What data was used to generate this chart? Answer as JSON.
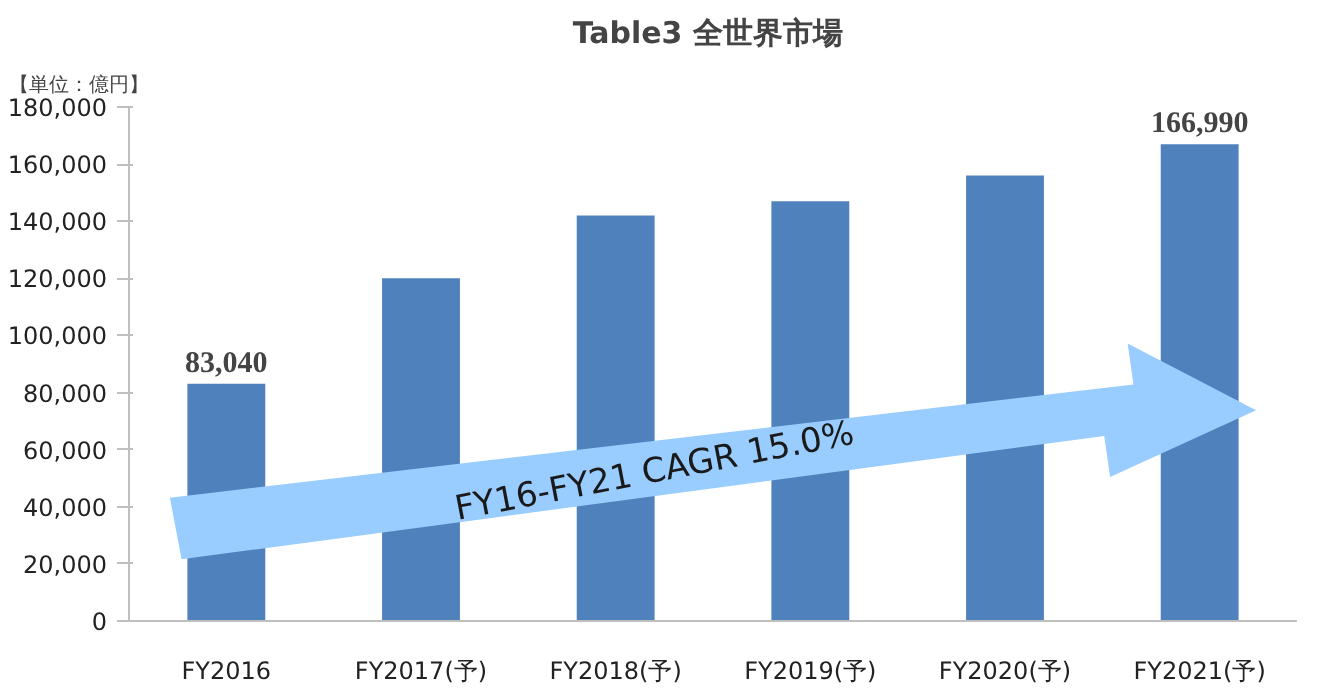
{
  "chart_data": {
    "type": "bar",
    "title": "Table3  全世界市場",
    "ylabel": "【単位：億円】",
    "categories": [
      "FY2016",
      "FY2017(予)",
      "FY2018(予)",
      "FY2019(予)",
      "FY2020(予)",
      "FY2021(予)"
    ],
    "values": [
      83040,
      120000,
      142000,
      147000,
      156000,
      166990
    ],
    "color": "#4f81bd",
    "value_labels": [
      "83,040",
      null,
      null,
      null,
      null,
      "166,990"
    ],
    "ylim": [
      0,
      180000
    ],
    "yticks": [
      {
        "value": 0,
        "label": "0"
      },
      {
        "value": 20000,
        "label": "20,000"
      },
      {
        "value": 40000,
        "label": "40,000"
      },
      {
        "value": 60000,
        "label": "60,000"
      },
      {
        "value": 80000,
        "label": "80,000"
      },
      {
        "value": 100000,
        "label": "100,000"
      },
      {
        "value": 120000,
        "label": "120,000"
      },
      {
        "value": 140000,
        "label": "140,000"
      },
      {
        "value": 160000,
        "label": "160,000"
      },
      {
        "value": 180000,
        "label": "180,000"
      }
    ],
    "grid": false,
    "annotations": [
      "FY16-FY21 CAGR 15.0%"
    ]
  }
}
